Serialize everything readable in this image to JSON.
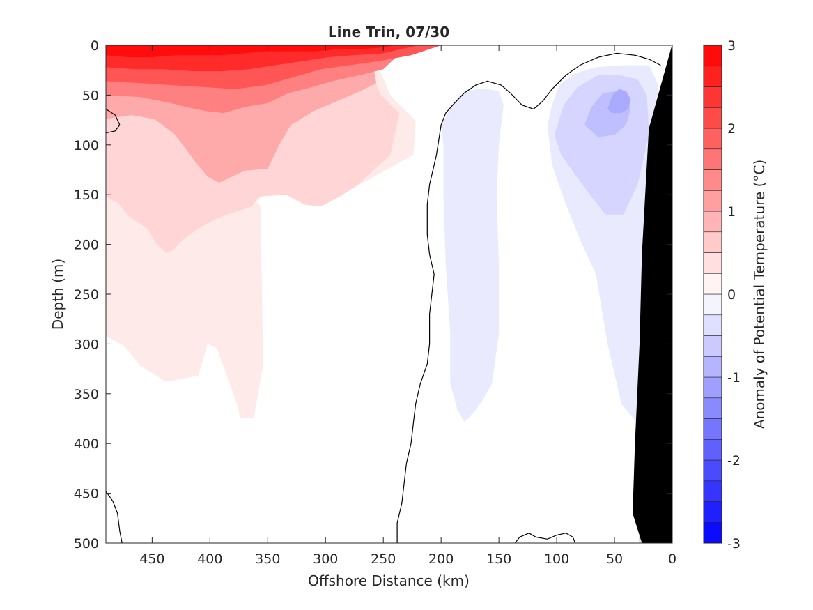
{
  "chart_data": {
    "type": "heatmap",
    "title": "Line Trin, 07/30",
    "xlabel": "Offshore Distance (km)",
    "ylabel": "Depth (m)",
    "xlim": [
      490,
      0
    ],
    "ylim": [
      500,
      0
    ],
    "x_ticks": [
      450,
      400,
      350,
      300,
      250,
      200,
      150,
      100,
      50,
      0
    ],
    "y_ticks": [
      0,
      50,
      100,
      150,
      200,
      250,
      300,
      350,
      400,
      450,
      500
    ],
    "colorbar": {
      "label": "Anomaly of Potential Temperature (°C)",
      "range": [
        -3,
        3
      ],
      "step": 0.25,
      "ticks": [
        3,
        2,
        1,
        0,
        -1,
        -2,
        -3
      ],
      "neg_color": "#0000ff",
      "pos_color": "#ff0000",
      "zero_color": "#ffffff"
    },
    "zero_contour_color": "#000000",
    "bathymetry_color": "#000000",
    "regions": [
      {
        "id": "warm-anomaly-0.25",
        "value": 0.25,
        "points": [
          [
            490,
            62
          ],
          [
            452,
            62
          ],
          [
            392,
            80
          ],
          [
            358,
            142
          ],
          [
            286,
            150
          ],
          [
            224,
            110
          ],
          [
            222,
            76
          ],
          [
            244,
            50
          ],
          [
            262,
            0
          ],
          [
            490,
            0
          ],
          [
            490,
            292
          ],
          [
            474,
            302
          ],
          [
            460,
            322
          ],
          [
            438,
            338
          ],
          [
            410,
            332
          ],
          [
            402,
            300
          ],
          [
            394,
            304
          ],
          [
            386,
            330
          ],
          [
            376,
            362
          ],
          [
            374,
            374
          ],
          [
            362,
            374
          ],
          [
            354,
            322
          ],
          [
            356,
            162
          ],
          [
            364,
            152
          ],
          [
            382,
            150
          ],
          [
            410,
            154
          ],
          [
            420,
            162
          ],
          [
            434,
            170
          ],
          [
            446,
            182
          ],
          [
            450,
            190
          ],
          [
            446,
            200
          ],
          [
            438,
            208
          ],
          [
            432,
            206
          ],
          [
            424,
            196
          ],
          [
            410,
            184
          ],
          [
            394,
            174
          ],
          [
            380,
            168
          ],
          [
            364,
            162
          ],
          [
            358,
            156
          ],
          [
            354,
            150
          ],
          [
            350,
            142
          ],
          [
            348,
            136
          ],
          [
            350,
            130
          ],
          [
            366,
            124
          ],
          [
            392,
            112
          ],
          [
            420,
            98
          ],
          [
            438,
            86
          ],
          [
            452,
            76
          ],
          [
            472,
            70
          ],
          [
            490,
            68
          ]
        ]
      },
      {
        "id": "warm-anomaly-0.5",
        "value": 0.5,
        "points": [
          [
            490,
            104
          ],
          [
            464,
            98
          ],
          [
            440,
            102
          ],
          [
            420,
            132
          ],
          [
            406,
            138
          ],
          [
            382,
            148
          ],
          [
            360,
            152
          ],
          [
            334,
            150
          ],
          [
            318,
            160
          ],
          [
            304,
            162
          ],
          [
            288,
            152
          ],
          [
            272,
            140
          ],
          [
            244,
            110
          ],
          [
            236,
            68
          ],
          [
            252,
            50
          ],
          [
            272,
            0
          ],
          [
            490,
            0
          ],
          [
            490,
            152
          ],
          [
            480,
            158
          ],
          [
            470,
            172
          ],
          [
            454,
            184
          ],
          [
            446,
            200
          ],
          [
            438,
            208
          ],
          [
            432,
            206
          ],
          [
            424,
            196
          ],
          [
            410,
            184
          ],
          [
            394,
            174
          ],
          [
            380,
            168
          ],
          [
            364,
            162
          ],
          [
            354,
            146
          ],
          [
            352,
            130
          ],
          [
            366,
            124
          ],
          [
            392,
            112
          ],
          [
            420,
            98
          ],
          [
            438,
            86
          ],
          [
            452,
            76
          ],
          [
            470,
            70
          ],
          [
            490,
            76
          ]
        ]
      },
      {
        "id": "warm-anomaly-1",
        "value": 1.0,
        "points": [
          [
            490,
            74
          ],
          [
            468,
            70
          ],
          [
            448,
            74
          ],
          [
            430,
            90
          ],
          [
            412,
            118
          ],
          [
            402,
            132
          ],
          [
            392,
            138
          ],
          [
            370,
            126
          ],
          [
            350,
            124
          ],
          [
            340,
            100
          ],
          [
            330,
            80
          ],
          [
            310,
            66
          ],
          [
            290,
            56
          ],
          [
            270,
            46
          ],
          [
            256,
            38
          ],
          [
            262,
            0
          ],
          [
            490,
            0
          ]
        ]
      },
      {
        "id": "warm-anomaly-1.5",
        "value": 1.5,
        "points": [
          [
            490,
            50
          ],
          [
            460,
            52
          ],
          [
            434,
            58
          ],
          [
            420,
            62
          ],
          [
            404,
            66
          ],
          [
            388,
            68
          ],
          [
            370,
            62
          ],
          [
            350,
            58
          ],
          [
            332,
            48
          ],
          [
            312,
            42
          ],
          [
            294,
            36
          ],
          [
            270,
            30
          ],
          [
            250,
            24
          ],
          [
            228,
            0
          ],
          [
            490,
            0
          ]
        ]
      },
      {
        "id": "warm-anomaly-2",
        "value": 2.0,
        "points": [
          [
            490,
            36
          ],
          [
            460,
            38
          ],
          [
            432,
            40
          ],
          [
            404,
            42
          ],
          [
            378,
            44
          ],
          [
            352,
            40
          ],
          [
            328,
            32
          ],
          [
            304,
            24
          ],
          [
            280,
            20
          ],
          [
            254,
            16
          ],
          [
            226,
            10
          ],
          [
            200,
            0
          ],
          [
            490,
            0
          ]
        ]
      },
      {
        "id": "warm-anomaly-2.5",
        "value": 2.5,
        "points": [
          [
            490,
            22
          ],
          [
            464,
            24
          ],
          [
            440,
            24
          ],
          [
            414,
            26
          ],
          [
            390,
            26
          ],
          [
            366,
            24
          ],
          [
            344,
            20
          ],
          [
            320,
            16
          ],
          [
            298,
            12
          ],
          [
            276,
            10
          ],
          [
            250,
            8
          ],
          [
            220,
            0
          ],
          [
            490,
            0
          ]
        ]
      },
      {
        "id": "warm-anomaly-3",
        "value": 2.85,
        "points": [
          [
            490,
            10
          ],
          [
            470,
            12
          ],
          [
            450,
            12
          ],
          [
            430,
            10
          ],
          [
            410,
            10
          ],
          [
            390,
            10
          ],
          [
            370,
            8
          ],
          [
            350,
            6
          ],
          [
            330,
            6
          ],
          [
            310,
            6
          ],
          [
            290,
            4
          ],
          [
            270,
            4
          ],
          [
            250,
            2
          ],
          [
            240,
            0
          ],
          [
            490,
            0
          ]
        ]
      },
      {
        "id": "cool-anomaly-mid-0.25",
        "value": -0.25,
        "points": [
          [
            200,
            80
          ],
          [
            190,
            60
          ],
          [
            184,
            50
          ],
          [
            170,
            44
          ],
          [
            160,
            44
          ],
          [
            150,
            46
          ],
          [
            146,
            60
          ],
          [
            150,
            100
          ],
          [
            152,
            150
          ],
          [
            150,
            220
          ],
          [
            150,
            290
          ],
          [
            156,
            340
          ],
          [
            166,
            360
          ],
          [
            174,
            372
          ],
          [
            180,
            378
          ],
          [
            186,
            366
          ],
          [
            192,
            340
          ],
          [
            192,
            290
          ],
          [
            196,
            220
          ],
          [
            198,
            150
          ],
          [
            198,
            100
          ]
        ]
      },
      {
        "id": "cool-anomaly-right-0.25",
        "value": -0.25,
        "points": [
          [
            108,
            80
          ],
          [
            104,
            60
          ],
          [
            98,
            40
          ],
          [
            84,
            28
          ],
          [
            66,
            22
          ],
          [
            44,
            20
          ],
          [
            20,
            20
          ],
          [
            12,
            40
          ],
          [
            10,
            130
          ],
          [
            18,
            220
          ],
          [
            22,
            330
          ],
          [
            30,
            380
          ],
          [
            44,
            360
          ],
          [
            56,
            300
          ],
          [
            66,
            230
          ],
          [
            78,
            200
          ],
          [
            92,
            160
          ],
          [
            104,
            120
          ]
        ]
      },
      {
        "id": "cool-anomaly-right-0.5",
        "value": -0.5,
        "points": [
          [
            102,
            90
          ],
          [
            94,
            60
          ],
          [
            82,
            42
          ],
          [
            64,
            30
          ],
          [
            46,
            30
          ],
          [
            30,
            34
          ],
          [
            22,
            50
          ],
          [
            20,
            90
          ],
          [
            30,
            140
          ],
          [
            42,
            170
          ],
          [
            58,
            170
          ],
          [
            70,
            152
          ],
          [
            84,
            130
          ],
          [
            96,
            110
          ]
        ]
      },
      {
        "id": "cool-anomaly-right-0.75",
        "value": -0.75,
        "points": [
          [
            76,
            80
          ],
          [
            70,
            62
          ],
          [
            60,
            48
          ],
          [
            48,
            46
          ],
          [
            40,
            52
          ],
          [
            36,
            64
          ],
          [
            40,
            80
          ],
          [
            50,
            90
          ],
          [
            64,
            92
          ]
        ]
      },
      {
        "id": "cool-anomaly-right-1",
        "value": -1.0,
        "points": [
          [
            56,
            64
          ],
          [
            52,
            50
          ],
          [
            46,
            44
          ],
          [
            40,
            46
          ],
          [
            36,
            54
          ],
          [
            38,
            64
          ],
          [
            44,
            68
          ],
          [
            52,
            68
          ]
        ]
      }
    ],
    "zero_contours": [
      {
        "id": "zero-contour-main",
        "points": [
          [
            238,
            500
          ],
          [
            238,
            480
          ],
          [
            234,
            460
          ],
          [
            230,
            420
          ],
          [
            226,
            400
          ],
          [
            224,
            380
          ],
          [
            222,
            360
          ],
          [
            218,
            340
          ],
          [
            212,
            320
          ],
          [
            210,
            300
          ],
          [
            210,
            270
          ],
          [
            208,
            250
          ],
          [
            206,
            230
          ],
          [
            210,
            210
          ],
          [
            212,
            190
          ],
          [
            212,
            160
          ],
          [
            210,
            140
          ],
          [
            204,
            110
          ],
          [
            200,
            80
          ],
          [
            196,
            68
          ],
          [
            190,
            60
          ],
          [
            180,
            48
          ],
          [
            170,
            40
          ],
          [
            160,
            36
          ],
          [
            148,
            40
          ],
          [
            140,
            48
          ],
          [
            130,
            60
          ],
          [
            120,
            64
          ],
          [
            112,
            56
          ],
          [
            104,
            44
          ],
          [
            92,
            30
          ],
          [
            80,
            20
          ],
          [
            64,
            12
          ],
          [
            48,
            8
          ],
          [
            32,
            10
          ],
          [
            20,
            14
          ],
          [
            10,
            20
          ]
        ]
      },
      {
        "id": "zero-contour-left-bottom",
        "points": [
          [
            490,
            448
          ],
          [
            484,
            458
          ],
          [
            480,
            470
          ],
          [
            478,
            488
          ],
          [
            476,
            500
          ]
        ]
      },
      {
        "id": "zero-contour-left-edge",
        "points": [
          [
            490,
            64
          ],
          [
            482,
            70
          ],
          [
            478,
            80
          ],
          [
            482,
            86
          ],
          [
            490,
            88
          ]
        ]
      },
      {
        "id": "zero-contour-bottom",
        "points": [
          [
            136,
            500
          ],
          [
            132,
            494
          ],
          [
            124,
            490
          ],
          [
            118,
            494
          ],
          [
            108,
            496
          ],
          [
            100,
            492
          ],
          [
            92,
            490
          ],
          [
            86,
            494
          ],
          [
            84,
            500
          ]
        ]
      },
      {
        "id": "zero-contour-slope",
        "points": [
          [
            28,
            500
          ],
          [
            28,
            488
          ],
          [
            30,
            470
          ],
          [
            30,
            452
          ],
          [
            26,
            440
          ]
        ]
      }
    ],
    "bathymetry": [
      [
        0,
        0
      ],
      [
        20,
        84
      ],
      [
        26,
        210
      ],
      [
        28,
        300
      ],
      [
        32,
        400
      ],
      [
        34,
        470
      ],
      [
        26,
        500
      ],
      [
        0,
        500
      ]
    ]
  }
}
